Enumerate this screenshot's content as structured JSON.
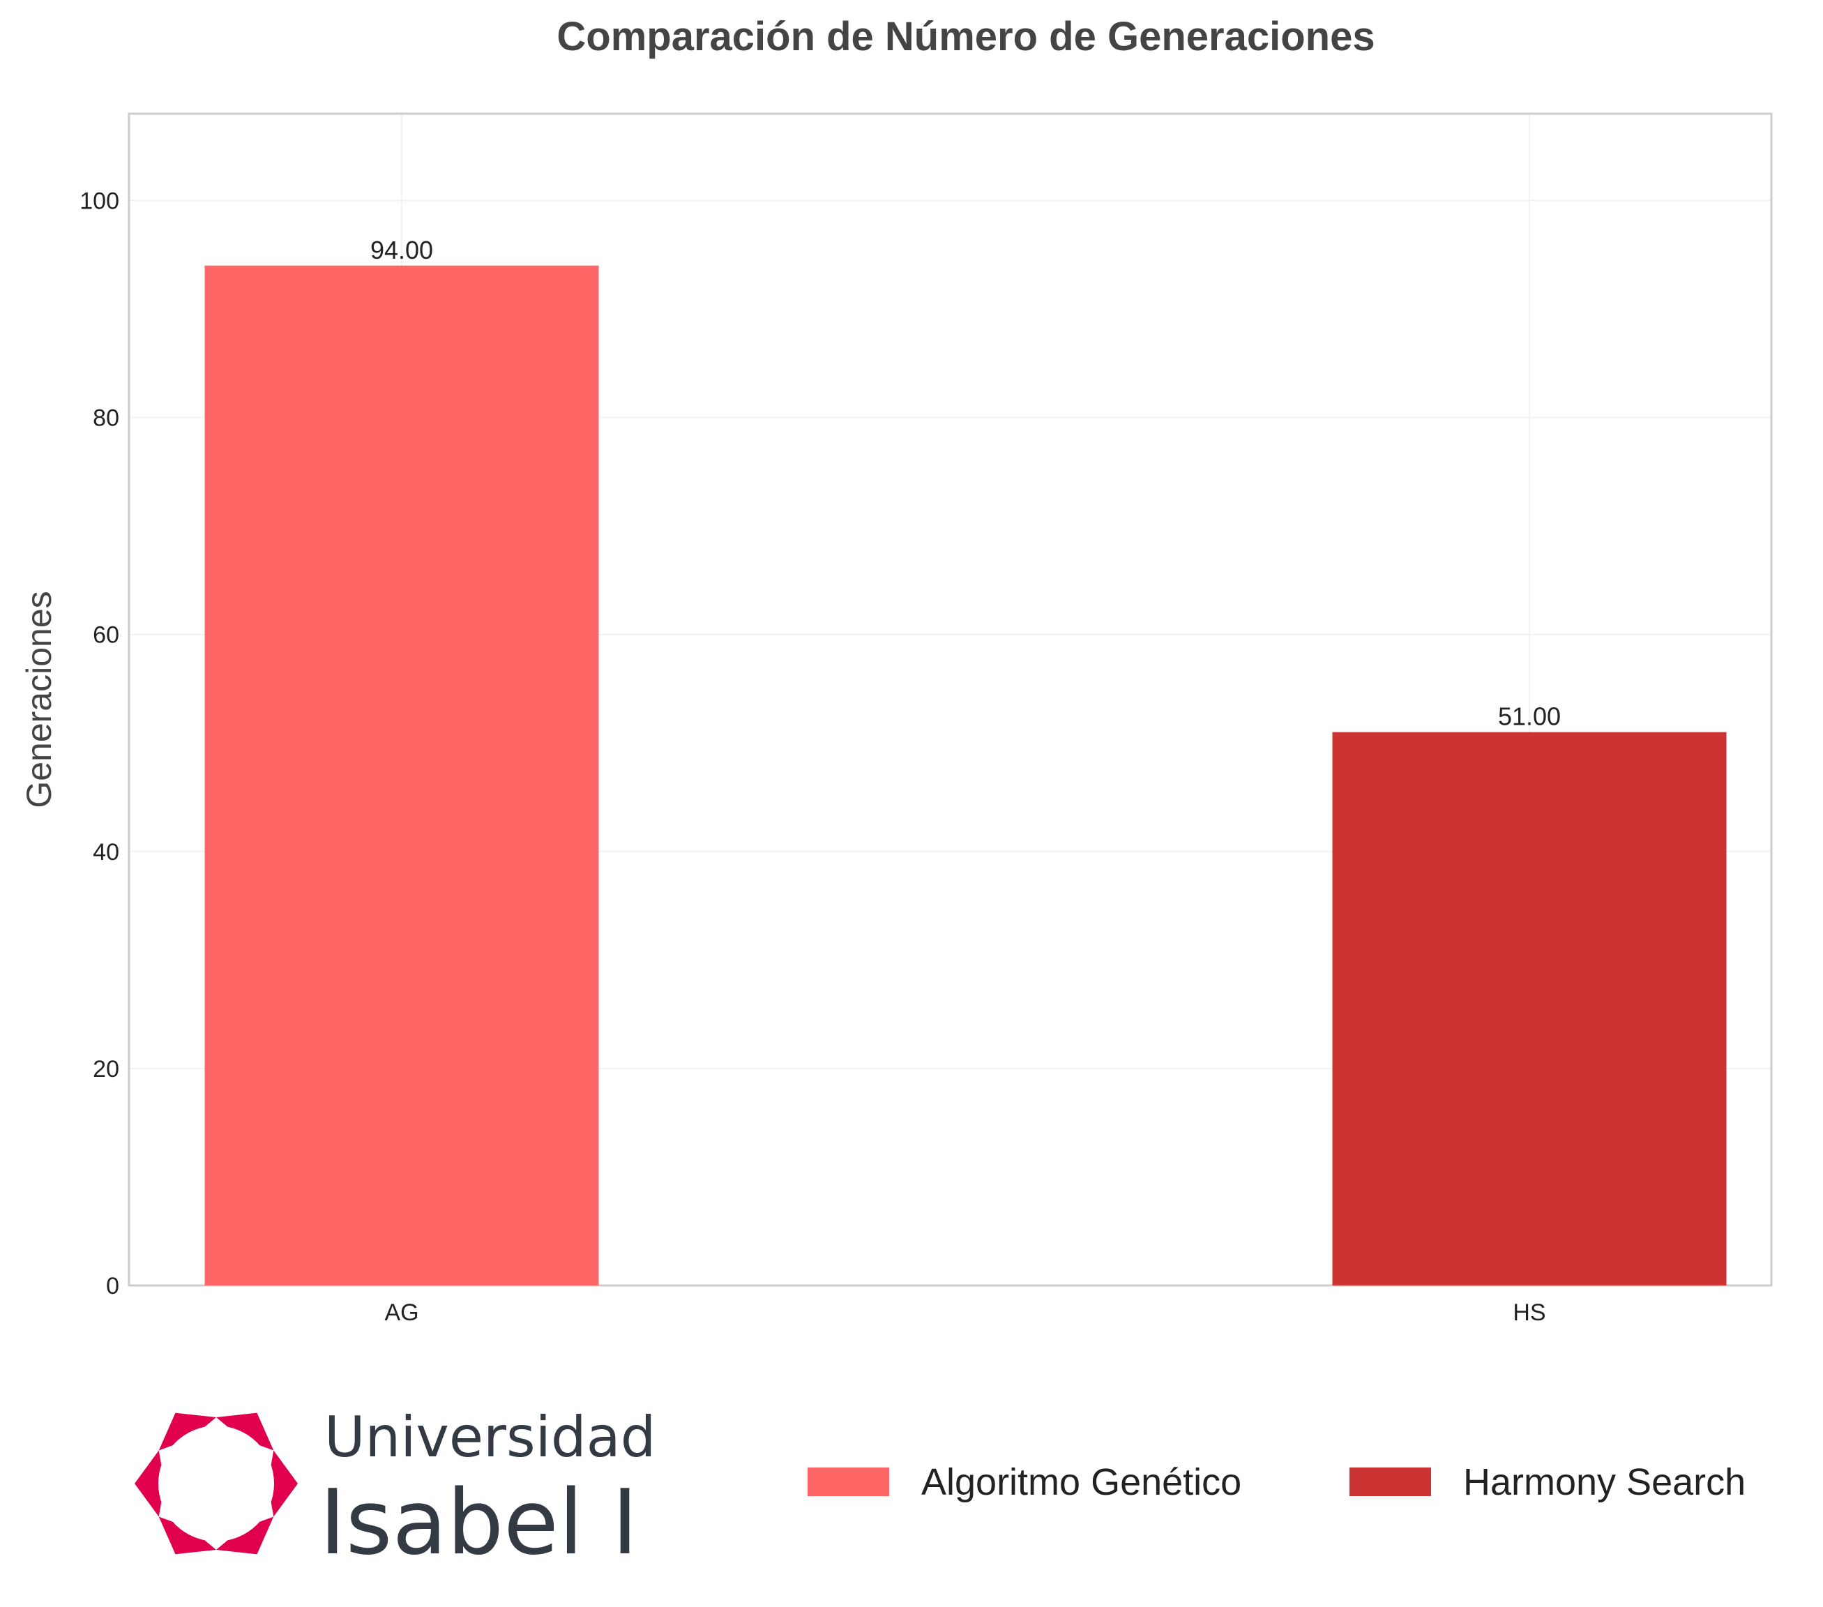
{
  "chart_data": {
    "type": "bar",
    "title": "Comparación de Número de Generaciones",
    "xlabel": "",
    "ylabel": "Generaciones",
    "categories": [
      "AG",
      "HS"
    ],
    "values": [
      94.0,
      51.0
    ],
    "value_labels": [
      "94.00",
      "51.00"
    ],
    "colors": [
      "#ff6666",
      "#cc3333"
    ],
    "ylim": [
      0,
      108
    ],
    "yticks": [
      0,
      20,
      40,
      60,
      80,
      100
    ],
    "grid": true,
    "legend_position": "bottom-right",
    "legend": [
      {
        "label": "Algoritmo Genético",
        "color": "#ff6666"
      },
      {
        "label": "Harmony Search",
        "color": "#cc3333"
      }
    ]
  },
  "logo": {
    "line1": "Universidad",
    "line2": "Isabel I",
    "color": "#e0004d"
  }
}
